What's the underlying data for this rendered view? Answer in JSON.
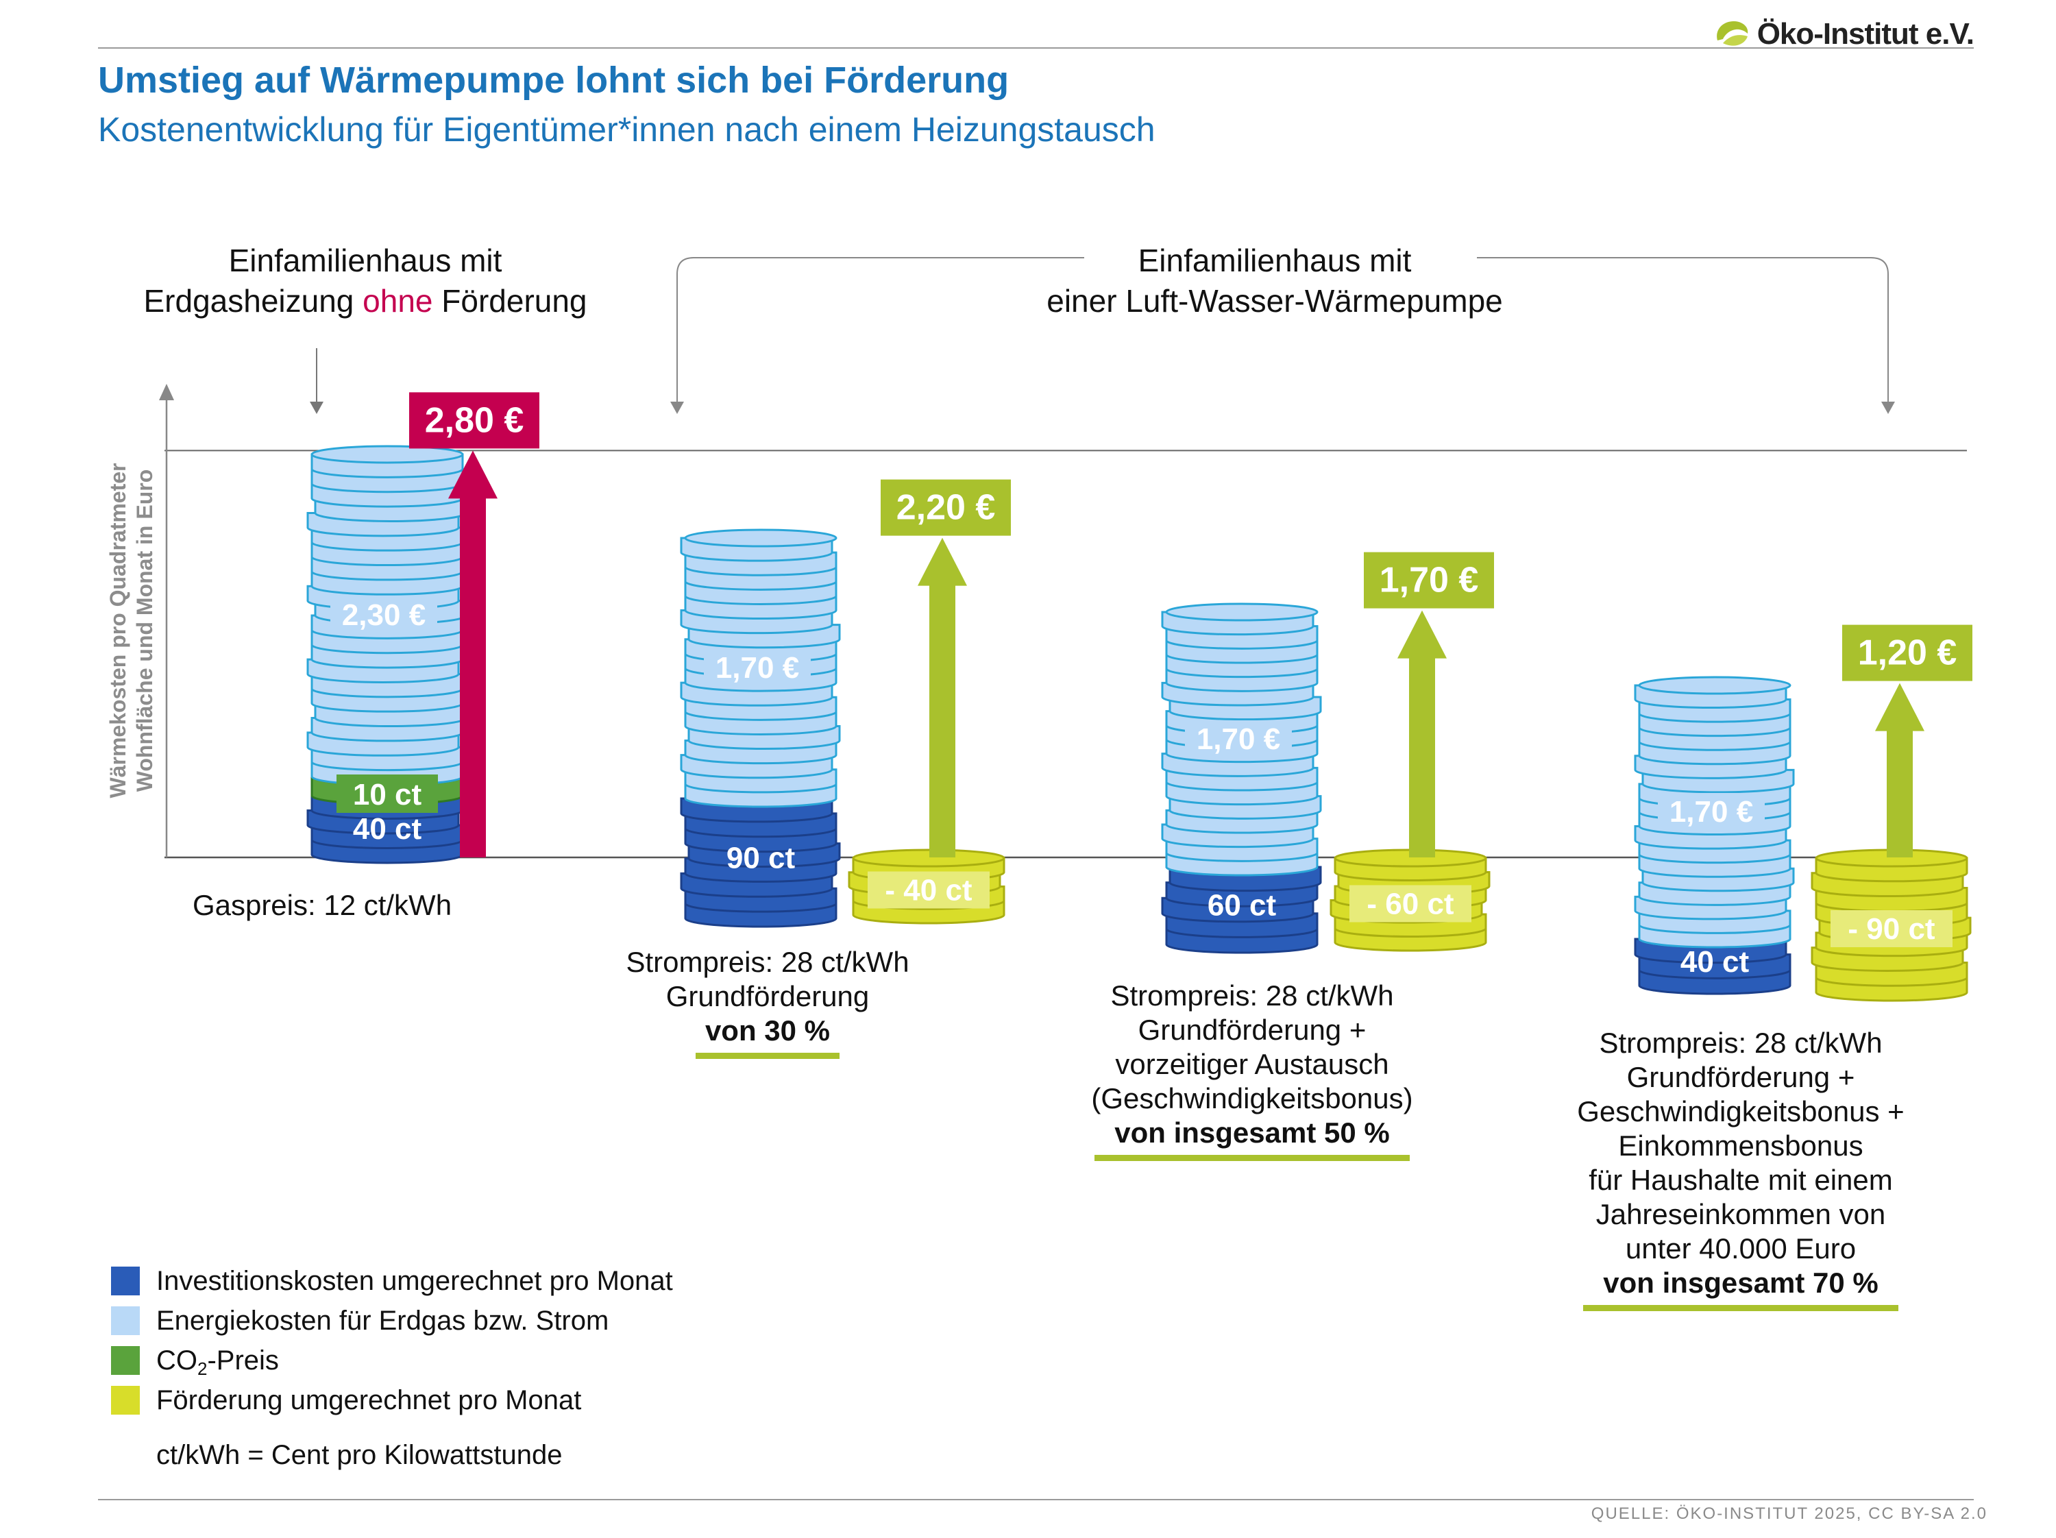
{
  "header": {
    "title": "Umstieg auf Wärmepumpe lohnt sich bei Förderung",
    "subtitle": "Kostenentwicklung für Eigentümer*innen nach einem Heizungstausch",
    "logo_text": "Öko-Institut e.V."
  },
  "footer": {
    "source": "QUELLE: ÖKO-INSTITUT 2025, CC BY-SA 2.0"
  },
  "colors": {
    "investment": "#2a5cb8",
    "energy": "#b9d9f7",
    "co2": "#5aa33c",
    "funding": "#d8dd2a",
    "arrow_gas": "#c4004f",
    "arrow_hp": "#a9c12d",
    "title": "#1b74b8"
  },
  "group_labels": {
    "gas": {
      "pre": "Einfamilienhaus mit",
      "line2_a": "Erdgasheizung ",
      "line2_highlight": "ohne",
      "line2_b": " Förderung"
    },
    "hp": {
      "line1": "Einfamilienhaus mit",
      "line2": "einer Luft-Wasser-Wärmepumpe"
    }
  },
  "chart_data": {
    "type": "bar",
    "stacked": true,
    "ylabel": "Wärmekosten pro Quadratmeter Wohnfläche und Monat in Euro",
    "unit": "EUR",
    "categories": [
      "Erdgasheizung ohne Förderung",
      "Wärmepumpe, Förderung 30 %",
      "Wärmepumpe, Förderung 50 %",
      "Wärmepumpe, Förderung 70 %"
    ],
    "series": [
      {
        "name": "Investitionskosten umgerechnet pro Monat",
        "values": [
          0.4,
          0.9,
          0.6,
          0.4
        ],
        "labels": [
          "40 ct",
          "90 ct",
          "60 ct",
          "40 ct"
        ]
      },
      {
        "name": "Energiekosten für Erdgas bzw. Strom",
        "values": [
          2.3,
          1.7,
          1.7,
          1.7
        ],
        "labels": [
          "2,30 €",
          "1,70 €",
          "1,70 €",
          "1,70 €"
        ]
      },
      {
        "name": "CO2-Preis",
        "values": [
          0.1,
          0,
          0,
          0
        ],
        "labels": [
          "10 ct",
          "",
          "",
          ""
        ]
      },
      {
        "name": "Förderung umgerechnet pro Monat",
        "values": [
          0,
          -0.4,
          -0.6,
          -0.9
        ],
        "labels": [
          "",
          "- 40 ct",
          "- 60 ct",
          "- 90 ct"
        ]
      }
    ],
    "totals": [
      2.8,
      2.2,
      1.7,
      1.2
    ],
    "total_labels": [
      "2,80 €",
      "2,20 €",
      "1,70 €",
      "1,20 €"
    ],
    "notes": [
      {
        "lines": [
          "Gaspreis: 12 ct/kWh"
        ],
        "bold": ""
      },
      {
        "lines": [
          "Strompreis: 28 ct/kWh",
          "Grundförderung"
        ],
        "bold": "von 30 %"
      },
      {
        "lines": [
          "Strompreis: 28 ct/kWh",
          "Grundförderung +",
          "vorzeitiger Austausch",
          "(Geschwindigkeitsbonus)"
        ],
        "bold": "von insgesamt 50 %"
      },
      {
        "lines": [
          "Strompreis: 28 ct/kWh",
          "Grundförderung +",
          "Geschwindigkeitsbonus +",
          "Einkommensbonus",
          "für Haushalte mit einem",
          "Jahreseinkommen von",
          "unter 40.000 Euro"
        ],
        "bold": "von insgesamt 70 %"
      }
    ],
    "legend": [
      {
        "label_pre": "Investitionskosten umgerechnet pro Monat",
        "sub": "",
        "label_post": "",
        "color": "#2a5cb8"
      },
      {
        "label_pre": "Energiekosten für Erdgas bzw. Strom",
        "sub": "",
        "label_post": "",
        "color": "#b9d9f7"
      },
      {
        "label_pre": "CO",
        "sub": "2",
        "label_post": "-Preis",
        "color": "#5aa33c"
      },
      {
        "label_pre": "Förderung umgerechnet pro Monat",
        "sub": "",
        "label_post": "",
        "color": "#d8dd2a"
      }
    ],
    "legend_note": "ct/kWh = Cent pro Kilowattstunde",
    "grid": false,
    "legend_position": "bottom-left"
  }
}
